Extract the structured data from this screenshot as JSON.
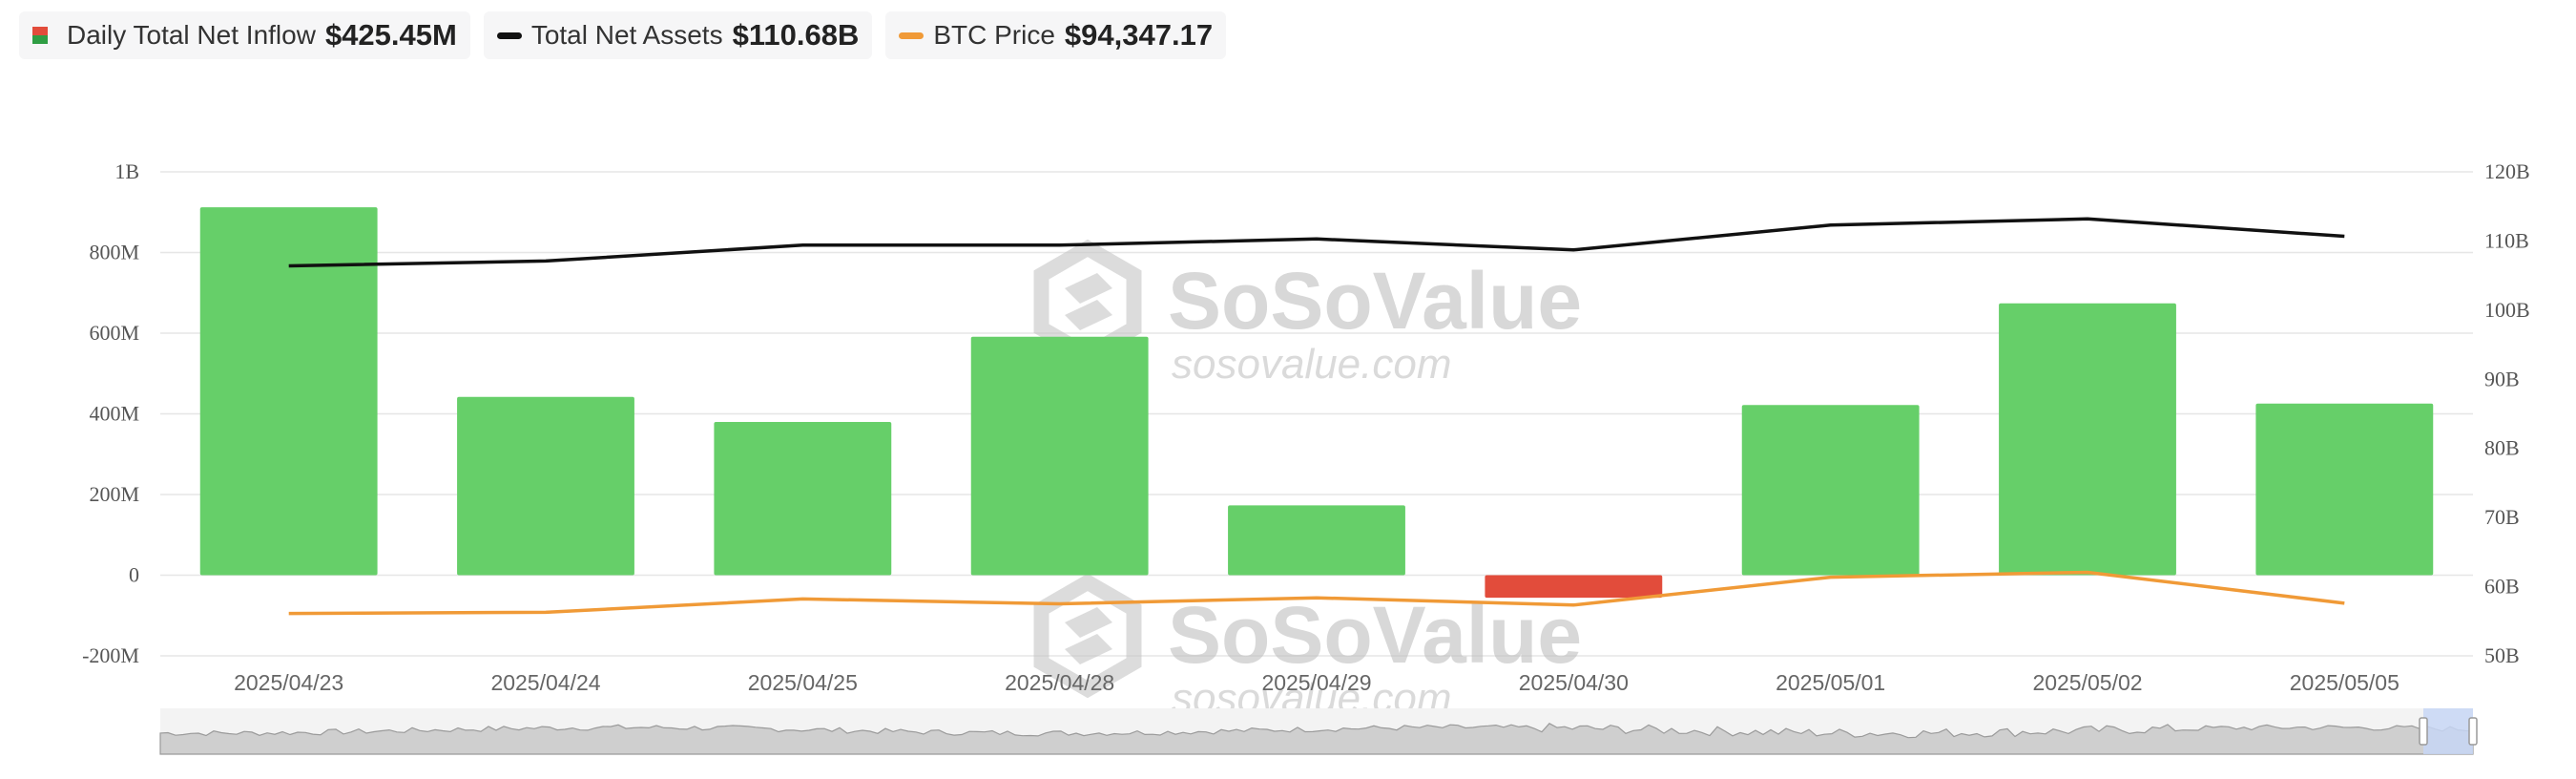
{
  "legend": {
    "inflow": {
      "label": "Daily Total Net Inflow",
      "value": "$425.45M",
      "color_pos": "#66cf69",
      "color_neg": "#e24c3b"
    },
    "assets": {
      "label": "Total Net Assets",
      "value": "$110.68B",
      "color": "#111111"
    },
    "btc": {
      "label": "BTC Price",
      "value": "$94,347.17",
      "color": "#f09a37"
    }
  },
  "watermark": {
    "brand": "SoSoValue",
    "url": "sosovalue.com"
  },
  "chart_data": {
    "type": "bar",
    "categories": [
      "2025/04/23",
      "2025/04/24",
      "2025/04/25",
      "2025/04/28",
      "2025/04/29",
      "2025/04/30",
      "2025/05/01",
      "2025/05/02",
      "2025/05/05"
    ],
    "series": [
      {
        "name": "Daily Total Net Inflow",
        "type": "bar",
        "axis": "left",
        "values": [
          912,
          442,
          380,
          591,
          173,
          -56,
          422,
          674,
          425.45
        ]
      },
      {
        "name": "Total Net Assets",
        "type": "line",
        "axis": "right",
        "values": [
          106.4,
          107.1,
          109.4,
          109.4,
          110.3,
          108.7,
          112.3,
          113.2,
          110.68
        ]
      },
      {
        "name": "BTC Price",
        "type": "line",
        "axis": "right",
        "note_units": "price line drawn on shared chart",
        "values": [
          93500,
          93600,
          94700,
          94300,
          94800,
          94200,
          96500,
          96900,
          94347.17
        ]
      }
    ],
    "left_axis": {
      "ylim": [
        -200,
        1000
      ],
      "ticks": [
        "-200M",
        "0",
        "200M",
        "400M",
        "600M",
        "800M",
        "1B"
      ]
    },
    "right_axis": {
      "ylim": [
        50,
        120
      ],
      "ticks": [
        "50B",
        "60B",
        "70B",
        "80B",
        "90B",
        "100B",
        "110B",
        "120B"
      ]
    },
    "btc_price_range": [
      90000,
      130000
    ],
    "grid": true,
    "legend_position": "top-left"
  }
}
